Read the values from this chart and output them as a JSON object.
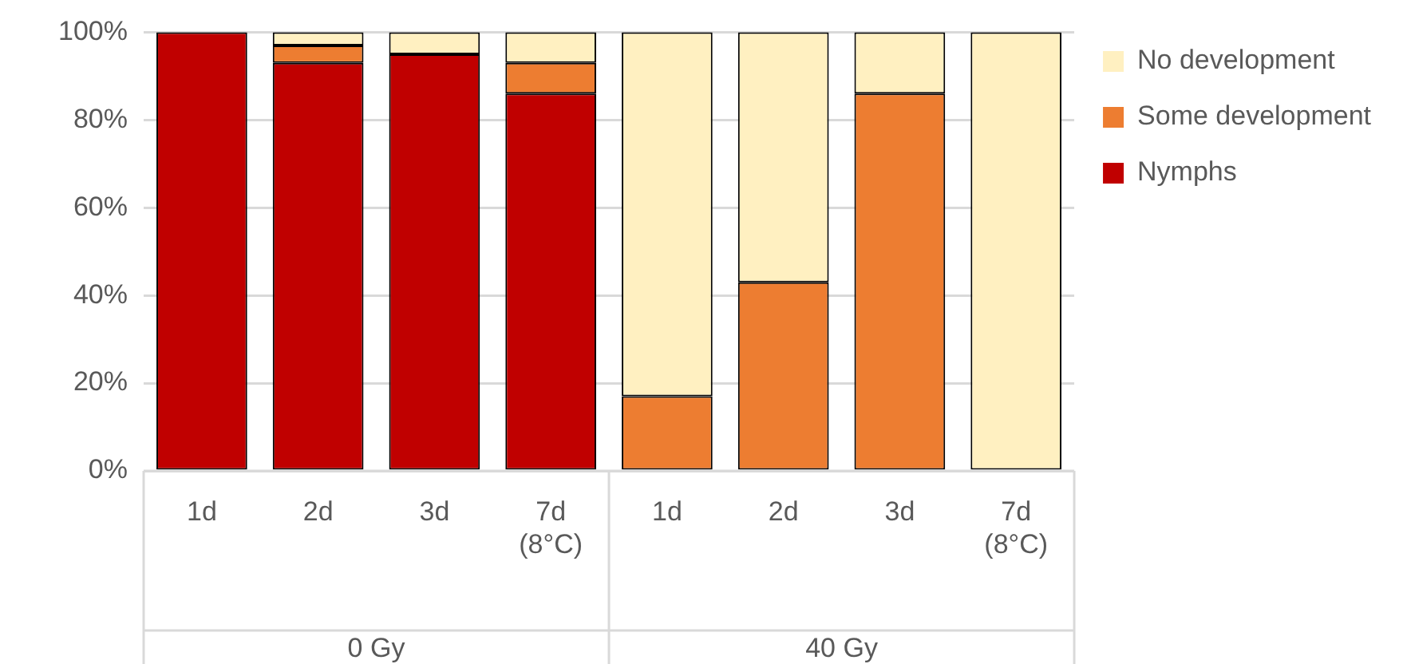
{
  "chart_data": {
    "type": "bar",
    "stacked": true,
    "categories": [
      "1d",
      "2d",
      "3d",
      "7d\n(8°C)",
      "1d",
      "2d",
      "3d",
      "7d\n(8°C)"
    ],
    "series": [
      {
        "name": "Nymphs",
        "color": "#c00000",
        "values": [
          100,
          93,
          95,
          86,
          0,
          0,
          0,
          0
        ]
      },
      {
        "name": "Some development",
        "color": "#ed7d31",
        "values": [
          0,
          4,
          0,
          7,
          17,
          43,
          86,
          0
        ]
      },
      {
        "name": "No development",
        "color": "#fff0c1",
        "values": [
          0,
          3,
          5,
          7,
          83,
          57,
          14,
          100
        ]
      }
    ],
    "ylim": [
      0,
      100
    ],
    "yticks": [
      {
        "value": 0,
        "label": "0%"
      },
      {
        "value": 20,
        "label": "20%"
      },
      {
        "value": 40,
        "label": "40%"
      },
      {
        "value": 60,
        "label": "60%"
      },
      {
        "value": 80,
        "label": "80%"
      },
      {
        "value": 100,
        "label": "100%"
      }
    ],
    "grid": "y",
    "legend": "right",
    "annotations": [
      "0 Gy",
      "40 Gy"
    ]
  }
}
